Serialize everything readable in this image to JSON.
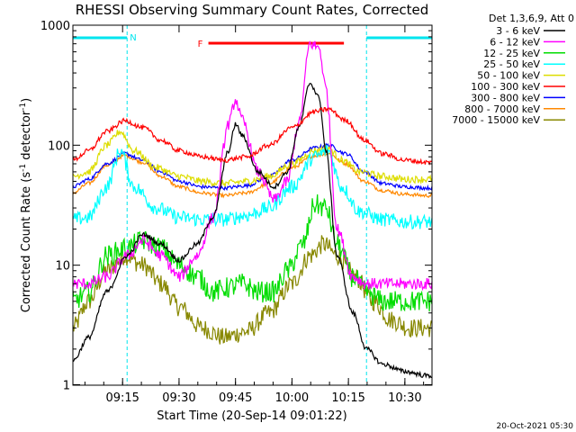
{
  "chart_data": {
    "type": "line",
    "title": "RHESSI Observing Summary Count Rates, Corrected",
    "xlabel": "Start Time (20-Sep-14 09:01:22)",
    "ylabel_pre": "Corrected Count Rate (s",
    "ylabel_sup1": "-1",
    "ylabel_mid": " detector",
    "ylabel_sup2": "-1",
    "ylabel_post": ")",
    "yscale": "log",
    "ylim": [
      1,
      1000
    ],
    "xlim_minutes": [
      9.03,
      10.62
    ],
    "x_tick_labels": [
      "09:15",
      "09:30",
      "09:45",
      "10:00",
      "10:15",
      "10:30"
    ],
    "x_tick_minutes": [
      9.25,
      9.5,
      9.75,
      10.0,
      10.25,
      10.5
    ],
    "y_tick_labels": [
      "1",
      "10",
      "100",
      "1000"
    ],
    "y_tick_values": [
      1,
      10,
      100,
      1000
    ],
    "legend_title": "Det 1,3,6,9, Att 0",
    "legend_position": "top-right",
    "annotations": {
      "night_label": "N",
      "flare_label": "F",
      "timestamp": "20-Oct-2021 05:30"
    },
    "night_intervals_hours": [
      [
        9.03,
        9.27
      ],
      [
        10.33,
        10.62
      ]
    ],
    "flare_interval_hours": [
      9.63,
      10.23
    ],
    "series": [
      {
        "name": "3 - 6 keV",
        "color": "#000000",
        "x": [
          9.03,
          9.1,
          9.18,
          9.27,
          9.34,
          9.42,
          9.5,
          9.58,
          9.65,
          9.72,
          9.75,
          9.78,
          9.85,
          9.92,
          9.98,
          10.03,
          10.08,
          10.12,
          10.15,
          10.2,
          10.27,
          10.33,
          10.4,
          10.5,
          10.6
        ],
        "y": [
          1.6,
          2.5,
          6,
          12,
          18,
          15,
          11,
          15,
          25,
          90,
          150,
          120,
          60,
          45,
          60,
          140,
          330,
          250,
          90,
          12,
          4,
          2,
          1.5,
          1.3,
          1.2
        ]
      },
      {
        "name": "6 - 12 keV",
        "color": "#ff00ff",
        "x": [
          9.03,
          9.1,
          9.18,
          9.27,
          9.34,
          9.42,
          9.5,
          9.58,
          9.65,
          9.72,
          9.75,
          9.78,
          9.85,
          9.92,
          9.98,
          10.03,
          10.08,
          10.12,
          10.15,
          10.2,
          10.27,
          10.33,
          10.4,
          10.5,
          10.6
        ],
        "y": [
          7,
          7,
          8,
          12,
          16,
          12,
          8,
          12,
          25,
          150,
          240,
          160,
          60,
          35,
          50,
          150,
          700,
          650,
          300,
          20,
          8,
          7,
          7,
          7,
          7
        ]
      },
      {
        "name": "12 - 25 keV",
        "color": "#00dd00",
        "x": [
          9.03,
          9.1,
          9.18,
          9.27,
          9.34,
          9.42,
          9.5,
          9.58,
          9.65,
          9.72,
          9.78,
          9.85,
          9.92,
          9.98,
          10.05,
          10.1,
          10.15,
          10.2,
          10.27,
          10.33,
          10.4,
          10.5,
          10.6
        ],
        "y": [
          5,
          6,
          12,
          14,
          16,
          14,
          10,
          8,
          6,
          6.5,
          7,
          6,
          6,
          9,
          15,
          32,
          30,
          15,
          8,
          6,
          5,
          5,
          5
        ]
      },
      {
        "name": "25 - 50 keV",
        "color": "#00ffff",
        "x": [
          9.03,
          9.1,
          9.18,
          9.24,
          9.3,
          9.4,
          9.5,
          9.6,
          9.7,
          9.8,
          9.9,
          10.0,
          10.1,
          10.16,
          10.22,
          10.3,
          10.4,
          10.5,
          10.6
        ],
        "y": [
          24,
          25,
          45,
          90,
          45,
          30,
          25,
          24,
          24,
          26,
          30,
          45,
          80,
          90,
          45,
          28,
          24,
          23,
          23
        ]
      },
      {
        "name": "50 - 100 keV",
        "color": "#dddd00",
        "x": [
          9.03,
          9.1,
          9.18,
          9.24,
          9.3,
          9.4,
          9.5,
          9.6,
          9.7,
          9.8,
          9.9,
          10.0,
          10.1,
          10.16,
          10.22,
          10.3,
          10.4,
          10.5,
          10.6
        ],
        "y": [
          55,
          60,
          100,
          130,
          90,
          65,
          55,
          50,
          48,
          50,
          55,
          70,
          90,
          95,
          75,
          60,
          55,
          52,
          52
        ]
      },
      {
        "name": "100 - 300 keV",
        "color": "#ff0000",
        "x": [
          9.03,
          9.1,
          9.18,
          9.26,
          9.34,
          9.42,
          9.5,
          9.6,
          9.7,
          9.8,
          9.9,
          10.0,
          10.1,
          10.16,
          10.24,
          10.32,
          10.4,
          10.5,
          10.6
        ],
        "y": [
          75,
          90,
          130,
          160,
          140,
          110,
          90,
          80,
          75,
          80,
          100,
          140,
          190,
          200,
          160,
          110,
          85,
          75,
          72
        ]
      },
      {
        "name": "300 - 800 keV",
        "color": "#0000ff",
        "x": [
          9.03,
          9.1,
          9.18,
          9.26,
          9.34,
          9.42,
          9.5,
          9.6,
          9.7,
          9.8,
          9.9,
          10.0,
          10.1,
          10.16,
          10.24,
          10.32,
          10.4,
          10.5,
          10.6
        ],
        "y": [
          45,
          52,
          70,
          85,
          75,
          60,
          50,
          45,
          44,
          46,
          55,
          75,
          95,
          100,
          85,
          60,
          48,
          45,
          44
        ]
      },
      {
        "name": "800 - 7000 keV",
        "color": "#ff8800",
        "x": [
          9.03,
          9.1,
          9.18,
          9.26,
          9.34,
          9.42,
          9.5,
          9.6,
          9.7,
          9.8,
          9.9,
          10.0,
          10.1,
          10.16,
          10.24,
          10.32,
          10.4,
          10.5,
          10.6
        ],
        "y": [
          40,
          48,
          68,
          82,
          72,
          55,
          45,
          40,
          38,
          40,
          48,
          65,
          82,
          85,
          70,
          50,
          42,
          39,
          38
        ]
      },
      {
        "name": "7000 - 15000 keV",
        "color": "#888800",
        "x": [
          9.03,
          9.1,
          9.18,
          9.26,
          9.34,
          9.42,
          9.5,
          9.6,
          9.7,
          9.8,
          9.9,
          10.0,
          10.08,
          10.14,
          10.2,
          10.28,
          10.36,
          10.44,
          10.52,
          10.6
        ],
        "y": [
          3,
          5,
          9,
          12,
          10,
          7,
          4.5,
          3,
          2.5,
          2.8,
          4,
          7,
          12,
          15,
          12,
          8,
          5,
          3.5,
          3,
          3
        ]
      }
    ]
  }
}
